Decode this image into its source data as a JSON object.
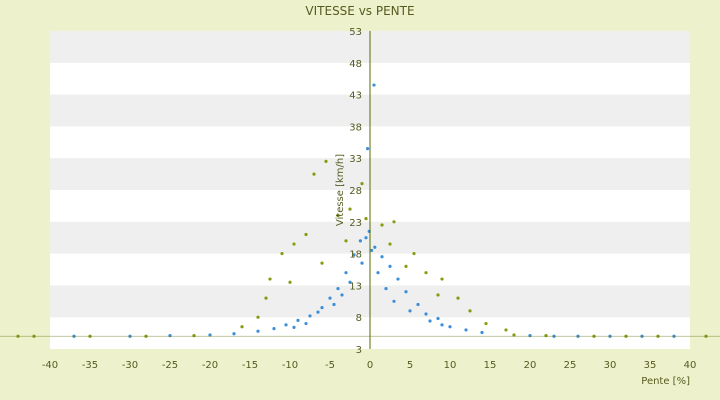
{
  "chart_data": {
    "type": "scatter",
    "title": "VITESSE vs PENTE",
    "xlabel": "Pente [%]",
    "ylabel": "Vitesse [km/h]",
    "xlim": [
      -40,
      40
    ],
    "ylim": [
      3,
      53
    ],
    "xticks": [
      "-40",
      "-35",
      "-30",
      "-25",
      "-20",
      "-15",
      "-10",
      "-5",
      "0",
      "5",
      "10",
      "15",
      "20",
      "25",
      "30",
      "35",
      "40"
    ],
    "yticks": [
      "3",
      "8",
      "13",
      "18",
      "23",
      "28",
      "33",
      "38",
      "43",
      "48",
      "53"
    ],
    "grid": "horizontal bands",
    "legend": "none",
    "colors": {
      "background": "#eef2cc",
      "plot_band_a": "#ffffff",
      "plot_band_b": "#efefef",
      "series_1": "#3b8fd9",
      "series_2": "#8a9a10",
      "axis": "#556b00",
      "text": "#555a20"
    },
    "series": [
      {
        "color": "#3b8fd9",
        "distribution": "dense cloud centred near 0% slope, 4-23 km/h, with baseline near 5 km/h spanning -37% to 40%",
        "points": [
          [
            0.5,
            44.5
          ],
          [
            -0.3,
            34.5
          ],
          [
            -0.1,
            21.5
          ],
          [
            0.6,
            19.0
          ],
          [
            -1.2,
            20.0
          ],
          [
            1.5,
            17.5
          ],
          [
            -2.0,
            17.8
          ],
          [
            2.5,
            16.0
          ],
          [
            -3.0,
            15.0
          ],
          [
            3.5,
            14.0
          ],
          [
            -4.0,
            12.5
          ],
          [
            4.5,
            12.0
          ],
          [
            -5.0,
            11.0
          ],
          [
            6.0,
            10.0
          ],
          [
            -6.0,
            9.5
          ],
          [
            7.0,
            8.5
          ],
          [
            -7.5,
            8.2
          ],
          [
            8.5,
            7.8
          ],
          [
            -9.0,
            7.5
          ],
          [
            10.0,
            6.5
          ],
          [
            -10.5,
            6.8
          ],
          [
            12.0,
            6.0
          ],
          [
            -12.0,
            6.2
          ],
          [
            14.0,
            5.6
          ],
          [
            -14.0,
            5.8
          ],
          [
            -0.5,
            20.5
          ],
          [
            0.2,
            18.5
          ],
          [
            -1.0,
            16.5
          ],
          [
            1.0,
            15.0
          ],
          [
            -2.5,
            13.5
          ],
          [
            2.0,
            12.5
          ],
          [
            -3.5,
            11.5
          ],
          [
            3.0,
            10.5
          ],
          [
            -4.5,
            10.0
          ],
          [
            5.0,
            9.0
          ],
          [
            -6.5,
            8.8
          ],
          [
            7.5,
            7.4
          ],
          [
            -8.0,
            7.0
          ],
          [
            9.0,
            6.8
          ],
          [
            -9.5,
            6.4
          ],
          [
            -37,
            5.0
          ],
          [
            -30,
            5.0
          ],
          [
            -25,
            5.1
          ],
          [
            -20,
            5.2
          ],
          [
            -17,
            5.4
          ],
          [
            20,
            5.1
          ],
          [
            23,
            5.0
          ],
          [
            26,
            5.0
          ],
          [
            30,
            5.0
          ],
          [
            34,
            5.0
          ],
          [
            38,
            5.0
          ]
        ]
      },
      {
        "color": "#8a9a10",
        "distribution": "overlapping cloud, more spread, reaching ~30 km/h near -5% slope",
        "points": [
          [
            -5.5,
            32.5
          ],
          [
            -7.0,
            30.5
          ],
          [
            -1.0,
            29.0
          ],
          [
            -2.5,
            25.0
          ],
          [
            3.0,
            23.0
          ],
          [
            -4.0,
            24.0
          ],
          [
            1.5,
            22.5
          ],
          [
            -0.5,
            23.5
          ],
          [
            -8.0,
            21.0
          ],
          [
            5.5,
            18.0
          ],
          [
            -9.5,
            19.5
          ],
          [
            7.0,
            15.0
          ],
          [
            -11.0,
            18.0
          ],
          [
            9.0,
            14.0
          ],
          [
            -12.5,
            14.0
          ],
          [
            11.0,
            11.0
          ],
          [
            -13.0,
            11.0
          ],
          [
            12.5,
            9.0
          ],
          [
            -14.0,
            8.0
          ],
          [
            14.5,
            7.0
          ],
          [
            -16.0,
            6.5
          ],
          [
            17.0,
            6.0
          ],
          [
            -3.0,
            20.0
          ],
          [
            2.5,
            19.5
          ],
          [
            -6.0,
            16.5
          ],
          [
            4.5,
            16.0
          ],
          [
            -10.0,
            13.5
          ],
          [
            8.5,
            11.5
          ],
          [
            -44,
            5.0
          ],
          [
            -42,
            5.0
          ],
          [
            -35,
            5.0
          ],
          [
            -28,
            5.0
          ],
          [
            -22,
            5.1
          ],
          [
            18,
            5.2
          ],
          [
            22,
            5.1
          ],
          [
            28,
            5.0
          ],
          [
            32,
            5.0
          ],
          [
            36,
            5.0
          ],
          [
            42,
            5.0
          ]
        ]
      }
    ]
  }
}
